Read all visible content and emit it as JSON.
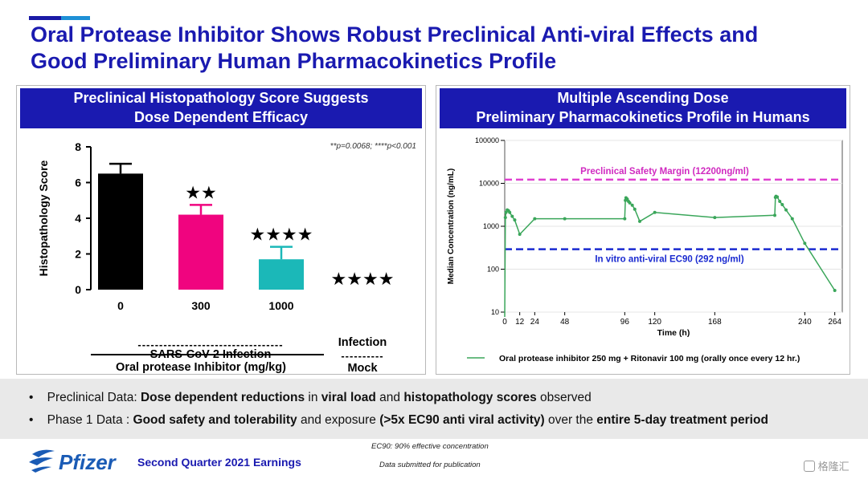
{
  "slide": {
    "title_line1": "Oral Protease Inhibitor Shows Robust Preclinical Anti-viral Effects and",
    "title_line2": "Good Preliminary Human Pharmacokinetics Profile"
  },
  "left_panel": {
    "header_line1": "Preclinical Histopathology Score Suggests",
    "header_line2": "Dose Dependent Efficacy",
    "pvalues": "**p=0.0068;   ****p<0.001",
    "group_label": "Oral protease Inhibitor (mg/kg)",
    "group_dashes": "----------------------------------",
    "infection_label": "SARS-CoV-2 Infection",
    "mock_dashes": "----------",
    "mock_line1": "Mock",
    "mock_line2": "Infection"
  },
  "right_panel": {
    "header_line1": "Multiple Ascending Dose",
    "header_line2": "Preliminary Pharmacokinetics Profile in Humans",
    "safety_label": "Preclinical Safety Margin (12200ng/ml)",
    "ec90_label": "In vitro anti-viral EC90 (292 ng/ml)",
    "legend_label": "Oral protease inhibitor 250 mg + Ritonavir 100 mg (orally once every 12 hr.)"
  },
  "bullets": {
    "b1_p1": "Preclinical Data: ",
    "b1_p2": "Dose dependent reductions",
    "b1_p3": " in ",
    "b1_p4": "viral load",
    "b1_p5": " and ",
    "b1_p6": "histopathology scores",
    "b1_p7": " observed",
    "b2_p1": "Phase 1 Data : ",
    "b2_p2": "Good safety and tolerability",
    "b2_p3": " and exposure ",
    "b2_p4": "(>5x EC90 anti viral activity)",
    "b2_p5": " over the ",
    "b2_p6": "entire 5-day treatment period"
  },
  "footer": {
    "brand": "Pfizer",
    "title": "Second Quarter 2021 Earnings",
    "note1": "EC90: 90% effective concentration",
    "note2": "Data submitted for publication",
    "watermark": "格隆汇"
  },
  "chart_data": [
    {
      "type": "bar",
      "ylabel": "Histopathology Score",
      "ylim": [
        0,
        8
      ],
      "yticks": [
        0,
        2,
        4,
        6,
        8
      ],
      "categories": [
        "0",
        "300",
        "1000",
        ""
      ],
      "values": [
        6.5,
        4.2,
        1.7,
        0
      ],
      "errors": [
        0.55,
        0.55,
        0.7,
        0
      ],
      "colors": [
        "#000000",
        "#f0047f",
        "#1bb8b8",
        "#ffffff"
      ],
      "annotations": [
        "",
        "★★",
        "★★★★",
        "★★★★"
      ]
    },
    {
      "type": "line",
      "ylabel": "Median Concentration (ng/mL)",
      "xlabel": "Time (h)",
      "yscale": "log",
      "ylim": [
        10,
        100000
      ],
      "yticks": [
        10,
        100,
        1000,
        10000,
        100000
      ],
      "ytick_labels": [
        "10",
        "100",
        "1000",
        "10000",
        "100000"
      ],
      "xlim": [
        0,
        270
      ],
      "xticks": [
        0,
        12,
        24,
        48,
        96,
        120,
        168,
        240,
        264
      ],
      "line_color": "#3aa65a",
      "reference_lines": [
        {
          "value": 12200,
          "color": "#e040d0"
        },
        {
          "value": 292,
          "color": "#1a2ad0"
        }
      ],
      "series": [
        {
          "x": [
            0,
            0.5,
            1,
            2,
            3,
            4,
            6,
            8,
            12,
            24,
            48,
            96,
            96.5,
            97,
            98,
            99,
            100,
            102,
            104,
            108,
            120,
            168,
            216,
            216.5,
            217,
            218,
            220,
            222,
            225,
            230,
            240,
            264
          ],
          "y": [
            5,
            1600,
            2100,
            2400,
            2300,
            2100,
            1700,
            1400,
            650,
            1500,
            1500,
            1500,
            4000,
            4600,
            4300,
            3800,
            3500,
            3100,
            2500,
            1300,
            2100,
            1600,
            1800,
            4700,
            5000,
            4800,
            3800,
            3200,
            2400,
            1500,
            400,
            32
          ]
        }
      ]
    }
  ]
}
